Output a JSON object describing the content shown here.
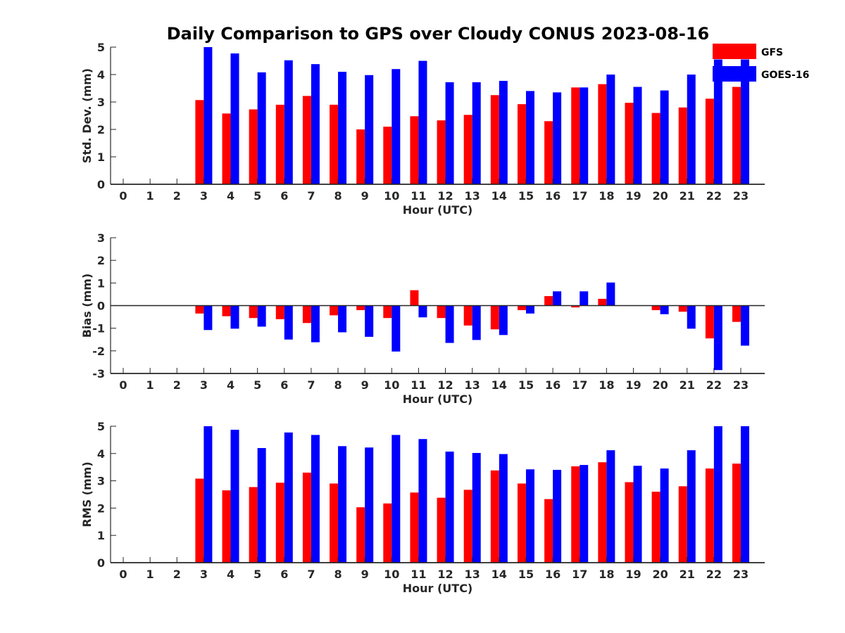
{
  "figure": {
    "title": "Daily Comparison to GPS over Cloudy CONUS 2023-08-16"
  },
  "legend": {
    "placement": "top-right",
    "entries": [
      {
        "name": "GFS",
        "color": "#ff0000"
      },
      {
        "name": "GOES-16",
        "color": "#0000ff"
      }
    ]
  },
  "chart_data": [
    {
      "type": "bar",
      "ylabel": "Std. Dev. (mm)",
      "xlabel": "Hour (UTC)",
      "ylim": [
        0,
        5
      ],
      "yticks": [
        0,
        1,
        2,
        3,
        4,
        5
      ],
      "categories": [
        "0",
        "1",
        "2",
        "3",
        "4",
        "5",
        "6",
        "7",
        "8",
        "9",
        "10",
        "11",
        "12",
        "13",
        "14",
        "15",
        "16",
        "17",
        "18",
        "19",
        "20",
        "21",
        "22",
        "23"
      ],
      "series": [
        {
          "name": "GFS",
          "color": "#ff0000",
          "values": [
            0,
            0,
            0,
            3.07,
            2.58,
            2.73,
            2.9,
            3.22,
            2.9,
            2.0,
            2.1,
            2.48,
            2.33,
            2.53,
            3.25,
            2.92,
            2.3,
            3.53,
            3.65,
            2.97,
            2.6,
            2.8,
            3.12,
            3.55
          ]
        },
        {
          "name": "GOES-16",
          "color": "#0000ff",
          "values": [
            0,
            0,
            0,
            5.0,
            4.77,
            4.08,
            4.52,
            4.38,
            4.1,
            3.98,
            4.2,
            4.5,
            3.72,
            3.72,
            3.77,
            3.4,
            3.35,
            3.53,
            4.0,
            3.55,
            3.42,
            4.0,
            4.55,
            4.55
          ]
        }
      ]
    },
    {
      "type": "bar",
      "ylabel": "Bias (mm)",
      "xlabel": "Hour (UTC)",
      "ylim": [
        -3,
        3
      ],
      "yticks": [
        -3,
        -2,
        -1,
        0,
        1,
        2,
        3
      ],
      "categories": [
        "0",
        "1",
        "2",
        "3",
        "4",
        "5",
        "6",
        "7",
        "8",
        "9",
        "10",
        "11",
        "12",
        "13",
        "14",
        "15",
        "16",
        "17",
        "18",
        "19",
        "20",
        "21",
        "22",
        "23"
      ],
      "series": [
        {
          "name": "GFS",
          "color": "#ff0000",
          "values": [
            0,
            0,
            0,
            -0.35,
            -0.47,
            -0.55,
            -0.6,
            -0.77,
            -0.43,
            -0.2,
            -0.55,
            0.68,
            -0.55,
            -0.88,
            -1.05,
            -0.2,
            0.42,
            -0.08,
            0.3,
            0,
            -0.2,
            -0.27,
            -1.45,
            -0.72
          ]
        },
        {
          "name": "GOES-16",
          "color": "#0000ff",
          "values": [
            0,
            0,
            0,
            -1.08,
            -1.02,
            -0.93,
            -1.5,
            -1.62,
            -1.18,
            -1.38,
            -2.03,
            -0.52,
            -1.65,
            -1.52,
            -1.3,
            -0.35,
            0.63,
            0.63,
            1.02,
            0,
            -0.38,
            -1.02,
            -2.85,
            -1.77
          ]
        }
      ]
    },
    {
      "type": "bar",
      "ylabel": "RMS (mm)",
      "xlabel": "Hour (UTC)",
      "ylim": [
        0,
        5
      ],
      "yticks": [
        0,
        1,
        2,
        3,
        4,
        5
      ],
      "categories": [
        "0",
        "1",
        "2",
        "3",
        "4",
        "5",
        "6",
        "7",
        "8",
        "9",
        "10",
        "11",
        "12",
        "13",
        "14",
        "15",
        "16",
        "17",
        "18",
        "19",
        "20",
        "21",
        "22",
        "23"
      ],
      "series": [
        {
          "name": "GFS",
          "color": "#ff0000",
          "values": [
            0,
            0,
            0,
            3.08,
            2.65,
            2.77,
            2.93,
            3.3,
            2.9,
            2.03,
            2.17,
            2.57,
            2.38,
            2.67,
            3.38,
            2.9,
            2.33,
            3.53,
            3.68,
            2.95,
            2.6,
            2.8,
            3.45,
            3.63
          ]
        },
        {
          "name": "GOES-16",
          "color": "#0000ff",
          "values": [
            0,
            0,
            0,
            5.0,
            4.87,
            4.2,
            4.77,
            4.68,
            4.27,
            4.22,
            4.68,
            4.53,
            4.07,
            4.02,
            3.98,
            3.42,
            3.4,
            3.58,
            4.12,
            3.55,
            3.45,
            4.12,
            5.0,
            5.0
          ]
        }
      ]
    }
  ]
}
